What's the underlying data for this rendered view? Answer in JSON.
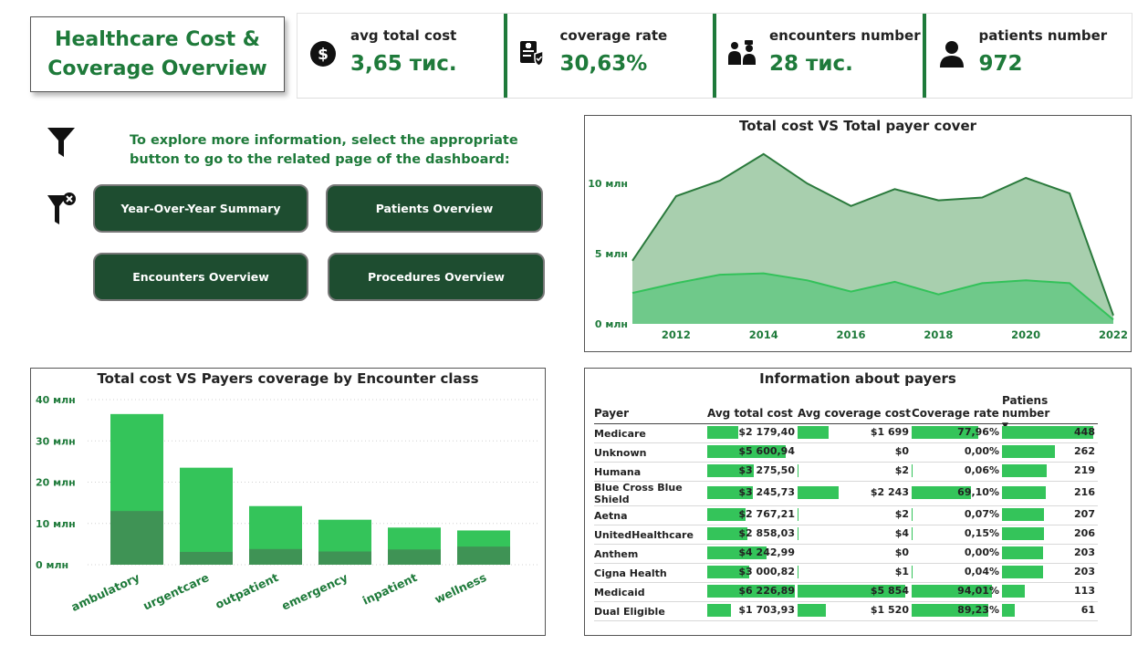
{
  "header": {
    "title": "Healthcare Cost & Coverage  Overview",
    "title_line1": "Healthcare Cost &",
    "title_line2": "Coverage  Overview"
  },
  "kpis": [
    {
      "label": "avg total cost",
      "value": "3,65 тис.",
      "icon": "dollar-circle-icon"
    },
    {
      "label": "coverage rate",
      "value": "30,63%",
      "icon": "insurance-card-icon"
    },
    {
      "label": "encounters number",
      "value": "28 тис.",
      "icon": "doctor-patient-icon"
    },
    {
      "label": "patients number",
      "value": "972",
      "icon": "person-icon"
    }
  ],
  "navigation": {
    "instructions": "To explore more information, select the appropriate button to go to the related page of the dashboard:",
    "buttons": [
      "Year-Over-Year Summary",
      "Patients Overview",
      "Encounters Overview",
      "Procedures Overview"
    ]
  },
  "colors": {
    "accent": "#1e7a3a",
    "button_bg": "#1e4d30",
    "bar_light": "#34c45a",
    "bar_dark": "#3f9355",
    "area_total": "#a8cfae",
    "area_cover": "#6fc98a"
  },
  "chart_data": [
    {
      "type": "area",
      "title": "Total cost VS Total payer cover",
      "x": [
        2011,
        2012,
        2013,
        2014,
        2015,
        2016,
        2017,
        2018,
        2019,
        2020,
        2021,
        2022
      ],
      "x_tick_labels": [
        "2012",
        "2014",
        "2016",
        "2018",
        "2020",
        "2022"
      ],
      "y_tick_labels": [
        "0 млн",
        "5 млн",
        "10 млн"
      ],
      "ylim": [
        0,
        13
      ],
      "series": [
        {
          "values": [
            4.5,
            9.1,
            10.2,
            12.1,
            10.0,
            8.4,
            9.6,
            8.8,
            9.0,
            10.4,
            9.3,
            0.6
          ]
        },
        {
          "values": [
            2.2,
            2.9,
            3.5,
            3.6,
            3.1,
            2.3,
            3.0,
            2.1,
            2.9,
            3.1,
            2.9,
            0.3
          ]
        }
      ],
      "grid": false
    },
    {
      "type": "bar",
      "title": "Total cost VS Payers coverage by Encounter class",
      "categories": [
        "ambulatory",
        "urgentcare",
        "outpatient",
        "emergency",
        "inpatient",
        "wellness"
      ],
      "y_tick_labels": [
        "0 млн",
        "10 млн",
        "20 млн",
        "30 млн",
        "40 млн"
      ],
      "ylim": [
        0,
        40
      ],
      "series": [
        {
          "values": [
            36.5,
            23.5,
            14.2,
            10.9,
            9.0,
            8.3
          ]
        },
        {
          "values": [
            13.0,
            3.1,
            3.8,
            3.2,
            3.7,
            4.4
          ]
        }
      ],
      "grid": true
    }
  ],
  "payers_table": {
    "title": "Information about payers",
    "columns": [
      "Payer",
      "Avg total cost",
      "Avg coverage cost",
      "Coverage rate",
      "Patiens number"
    ],
    "sort_indicator": "▼",
    "rows": [
      {
        "payer": "Medicare",
        "avg_total": "$2 179,40",
        "avg_cov": "$1 699",
        "rate": "77,96%",
        "patients": "448",
        "f_total": 0.35,
        "f_cov": 0.29,
        "f_rate": 0.83,
        "f_pat": 1.0
      },
      {
        "payer": "Unknown",
        "avg_total": "$5 600,94",
        "avg_cov": "$0",
        "rate": "0,00%",
        "patients": "262",
        "f_total": 0.9,
        "f_cov": 0.0,
        "f_rate": 0.0,
        "f_pat": 0.58
      },
      {
        "payer": "Humana",
        "avg_total": "$3 275,50",
        "avg_cov": "$2",
        "rate": "0,06%",
        "patients": "219",
        "f_total": 0.53,
        "f_cov": 0.004,
        "f_rate": 0.003,
        "f_pat": 0.49
      },
      {
        "payer": "Blue Cross Blue Shield",
        "avg_total": "$3 245,73",
        "avg_cov": "$2 243",
        "rate": "69,10%",
        "patients": "216",
        "f_total": 0.52,
        "f_cov": 0.38,
        "f_rate": 0.74,
        "f_pat": 0.48
      },
      {
        "payer": "Aetna",
        "avg_total": "$2 767,21",
        "avg_cov": "$2",
        "rate": "0,07%",
        "patients": "207",
        "f_total": 0.44,
        "f_cov": 0.004,
        "f_rate": 0.003,
        "f_pat": 0.46
      },
      {
        "payer": "UnitedHealthcare",
        "avg_total": "$2 858,03",
        "avg_cov": "$4",
        "rate": "0,15%",
        "patients": "206",
        "f_total": 0.46,
        "f_cov": 0.006,
        "f_rate": 0.006,
        "f_pat": 0.46
      },
      {
        "payer": "Anthem",
        "avg_total": "$4 242,99",
        "avg_cov": "$0",
        "rate": "0,00%",
        "patients": "203",
        "f_total": 0.68,
        "f_cov": 0.0,
        "f_rate": 0.0,
        "f_pat": 0.45
      },
      {
        "payer": "Cigna Health",
        "avg_total": "$3 000,82",
        "avg_cov": "$1",
        "rate": "0,04%",
        "patients": "203",
        "f_total": 0.48,
        "f_cov": 0.003,
        "f_rate": 0.002,
        "f_pat": 0.45
      },
      {
        "payer": "Medicaid",
        "avg_total": "$6 226,89",
        "avg_cov": "$5 854",
        "rate": "94,01%",
        "patients": "113",
        "f_total": 1.0,
        "f_cov": 1.0,
        "f_rate": 1.0,
        "f_pat": 0.25
      },
      {
        "payer": "Dual Eligible",
        "avg_total": "$1 703,93",
        "avg_cov": "$1 520",
        "rate": "89,23%",
        "patients": "61",
        "f_total": 0.27,
        "f_cov": 0.26,
        "f_rate": 0.95,
        "f_pat": 0.14
      }
    ]
  }
}
